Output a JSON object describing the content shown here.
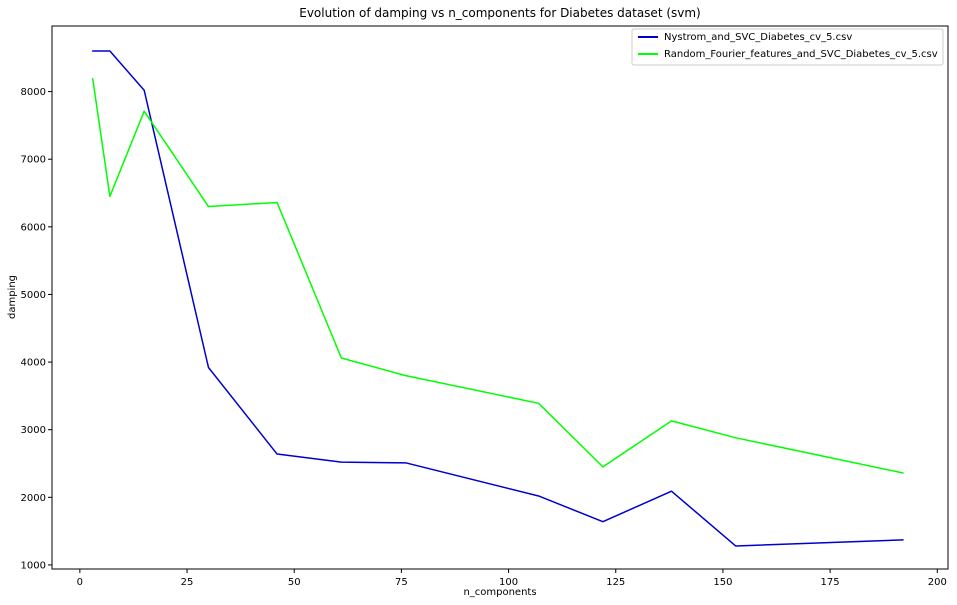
{
  "chart_data": {
    "type": "line",
    "title": "Evolution of damping vs n_components for Diabetes dataset (svm)",
    "xlabel": "n_components",
    "ylabel": "damping",
    "xlim": [
      -6.5,
      202.5
    ],
    "ylim": [
      940,
      8970
    ],
    "xticks": [
      0,
      25,
      50,
      75,
      100,
      125,
      150,
      175,
      200
    ],
    "yticks": [
      1000,
      2000,
      3000,
      4000,
      5000,
      6000,
      7000,
      8000
    ],
    "grid": false,
    "legend_position": "top-right",
    "series": [
      {
        "name": "Nystrom_and_SVC_Diabetes_cv_5.csv",
        "color": "#0000cd",
        "x": [
          3,
          7,
          15,
          30,
          46,
          61,
          76,
          107,
          122,
          138,
          153,
          192
        ],
        "y": [
          8600,
          8600,
          8020,
          3920,
          2640,
          2520,
          2510,
          2020,
          1640,
          2090,
          1280,
          1370
        ]
      },
      {
        "name": "Random_Fourier_features_and_SVC_Diabetes_cv_5.csv",
        "color": "#00ff00",
        "x": [
          3,
          7,
          15,
          30,
          46,
          61,
          76,
          107,
          122,
          138,
          153,
          192
        ],
        "y": [
          8190,
          6450,
          7710,
          6300,
          6360,
          4060,
          3800,
          3390,
          2450,
          3130,
          2880,
          2360
        ]
      }
    ]
  }
}
